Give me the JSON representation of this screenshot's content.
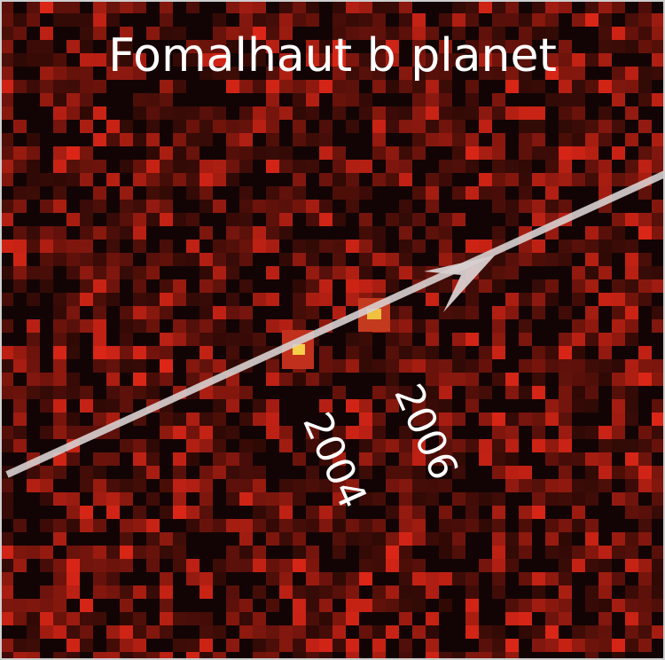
{
  "title": "Fomalhaut b planet",
  "labels": {
    "first": "2004",
    "second": "2006"
  }
}
